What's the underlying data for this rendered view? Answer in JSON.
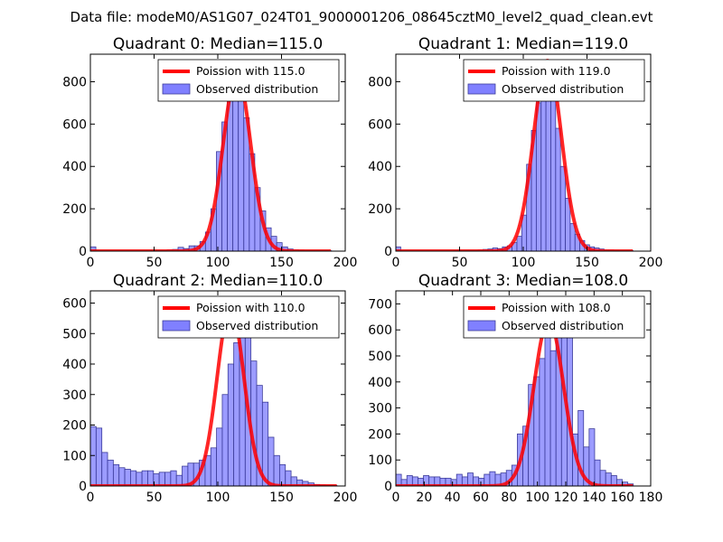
{
  "suptitle": "Data file: modeM0/AS1G07_024T01_9000001206_08645cztM0_level2_quad_clean.evt",
  "colors": {
    "bar_fill": "#8080ff",
    "bar_edge": "#3c3c99",
    "poisson": "#ff0000"
  },
  "chart_data": [
    {
      "type": "bar",
      "title": "Quadrant 0: Median=115.0",
      "xlim": [
        0,
        200
      ],
      "ylim": [
        0,
        930
      ],
      "xticks": [
        "0",
        "50",
        "100",
        "150",
        "200"
      ],
      "yticks": [
        {
          "v": 0,
          "label": "0"
        },
        {
          "v": 200,
          "label": "200"
        },
        {
          "v": 400,
          "label": "400"
        },
        {
          "v": 600,
          "label": "600"
        },
        {
          "v": 800,
          "label": "800"
        }
      ],
      "legend": [
        "Poission with 115.0",
        "Observed distribution"
      ],
      "mean": 115,
      "bin_width": 4.3,
      "x_bins": [
        0,
        47.3,
        51.6,
        55.9,
        60.2,
        64.5,
        68.8,
        73.1,
        77.4,
        81.7,
        86.0,
        90.3,
        94.6,
        98.9,
        103.2,
        107.5,
        111.8,
        116.1,
        120.4,
        124.7,
        129.0,
        133.3,
        137.6,
        141.9,
        146.2,
        150.5,
        154.8,
        159.1,
        163.4,
        167.7,
        172.0,
        176.3,
        180.6,
        184.9
      ],
      "values": [
        20,
        3,
        3,
        3,
        6,
        8,
        18,
        12,
        25,
        25,
        45,
        90,
        200,
        470,
        610,
        720,
        820,
        840,
        630,
        460,
        300,
        190,
        110,
        70,
        40,
        20,
        10,
        6,
        4,
        2,
        2,
        2,
        2,
        2
      ]
    },
    {
      "type": "bar",
      "title": "Quadrant 1: Median=119.0",
      "xlim": [
        0,
        200
      ],
      "ylim": [
        0,
        930
      ],
      "xticks": [
        "0",
        "50",
        "100",
        "150",
        "200"
      ],
      "yticks": [
        {
          "v": 0,
          "label": "0"
        },
        {
          "v": 200,
          "label": "200"
        },
        {
          "v": 400,
          "label": "400"
        },
        {
          "v": 600,
          "label": "600"
        },
        {
          "v": 800,
          "label": "800"
        }
      ],
      "legend": [
        "Poission with 119.0",
        "Observed distribution"
      ],
      "mean": 119,
      "bin_width": 3.8,
      "x_bins": [
        0,
        45.6,
        49.4,
        53.2,
        57.0,
        60.8,
        64.6,
        68.4,
        72.2,
        76.0,
        79.8,
        83.6,
        87.4,
        91.2,
        95.0,
        98.8,
        102.6,
        106.4,
        110.2,
        114.0,
        117.8,
        121.6,
        125.4,
        129.2,
        133.0,
        136.8,
        140.6,
        144.4,
        148.2,
        152.0,
        155.8,
        159.6,
        163.4,
        167.2,
        171.0,
        174.8,
        178.6,
        182.4
      ],
      "values": [
        20,
        2,
        2,
        3,
        3,
        3,
        5,
        8,
        10,
        15,
        12,
        20,
        25,
        40,
        70,
        170,
        410,
        570,
        700,
        900,
        750,
        710,
        580,
        400,
        250,
        130,
        80,
        50,
        30,
        20,
        15,
        10,
        5,
        5,
        3,
        2,
        2,
        2
      ]
    },
    {
      "type": "bar",
      "title": "Quadrant 2: Median=110.0",
      "xlim": [
        0,
        200
      ],
      "ylim": [
        0,
        640
      ],
      "xticks": [
        "0",
        "50",
        "100",
        "150",
        "200"
      ],
      "yticks": [
        {
          "v": 0,
          "label": "0"
        },
        {
          "v": 100,
          "label": "100"
        },
        {
          "v": 200,
          "label": "200"
        },
        {
          "v": 300,
          "label": "300"
        },
        {
          "v": 400,
          "label": "400"
        },
        {
          "v": 500,
          "label": "500"
        },
        {
          "v": 600,
          "label": "600"
        }
      ],
      "legend": [
        "Poission with 110.0",
        "Observed distribution"
      ],
      "mean": 110,
      "bin_width": 4.5,
      "x_bins": [
        0,
        4.5,
        9.0,
        13.5,
        18.0,
        22.5,
        27.0,
        31.5,
        36.0,
        40.5,
        45.0,
        49.5,
        54.0,
        58.5,
        63.0,
        67.5,
        72.0,
        76.5,
        81.0,
        85.5,
        90.0,
        94.5,
        99.0,
        103.5,
        108.0,
        112.5,
        117.0,
        121.5,
        126.0,
        130.5,
        135.0,
        139.5,
        144.0,
        148.5,
        153.0,
        157.5,
        162.0,
        166.5,
        171.0,
        175.5,
        180.0,
        184.5,
        189.0
      ],
      "values": [
        195,
        190,
        110,
        85,
        70,
        60,
        55,
        50,
        45,
        50,
        50,
        40,
        45,
        45,
        50,
        35,
        65,
        75,
        75,
        85,
        100,
        125,
        190,
        300,
        400,
        470,
        590,
        520,
        410,
        330,
        275,
        160,
        100,
        70,
        50,
        30,
        20,
        15,
        10,
        5,
        3,
        2,
        2
      ]
    },
    {
      "type": "bar",
      "title": "Quadrant 3: Median=108.0",
      "xlim": [
        0,
        180
      ],
      "ylim": [
        0,
        750
      ],
      "xticks": [
        "0",
        "20",
        "40",
        "60",
        "80",
        "100",
        "120",
        "140",
        "160",
        "180"
      ],
      "yticks": [
        {
          "v": 0,
          "label": "0"
        },
        {
          "v": 100,
          "label": "100"
        },
        {
          "v": 200,
          "label": "200"
        },
        {
          "v": 300,
          "label": "300"
        },
        {
          "v": 400,
          "label": "400"
        },
        {
          "v": 500,
          "label": "500"
        },
        {
          "v": 600,
          "label": "600"
        },
        {
          "v": 700,
          "label": "700"
        }
      ],
      "legend": [
        "Poission with 108.0",
        "Observed distribution"
      ],
      "mean": 108,
      "bin_width": 3.9,
      "x_bins": [
        0,
        3.9,
        7.8,
        11.7,
        15.6,
        19.5,
        23.4,
        27.3,
        31.2,
        35.1,
        39.0,
        42.9,
        46.8,
        50.7,
        54.6,
        58.5,
        62.4,
        66.3,
        70.2,
        74.1,
        78.0,
        81.9,
        85.8,
        89.7,
        93.6,
        97.5,
        101.4,
        105.3,
        109.2,
        113.1,
        117.0,
        120.9,
        124.8,
        128.7,
        132.6,
        136.5,
        140.4,
        144.3,
        148.2,
        152.1,
        156.0,
        159.9,
        163.8
      ],
      "values": [
        45,
        25,
        40,
        35,
        30,
        40,
        35,
        35,
        30,
        30,
        25,
        45,
        35,
        50,
        35,
        30,
        45,
        55,
        45,
        50,
        60,
        80,
        200,
        230,
        390,
        420,
        490,
        600,
        520,
        600,
        640,
        580,
        200,
        290,
        150,
        220,
        100,
        60,
        50,
        40,
        25,
        15,
        8
      ]
    }
  ]
}
